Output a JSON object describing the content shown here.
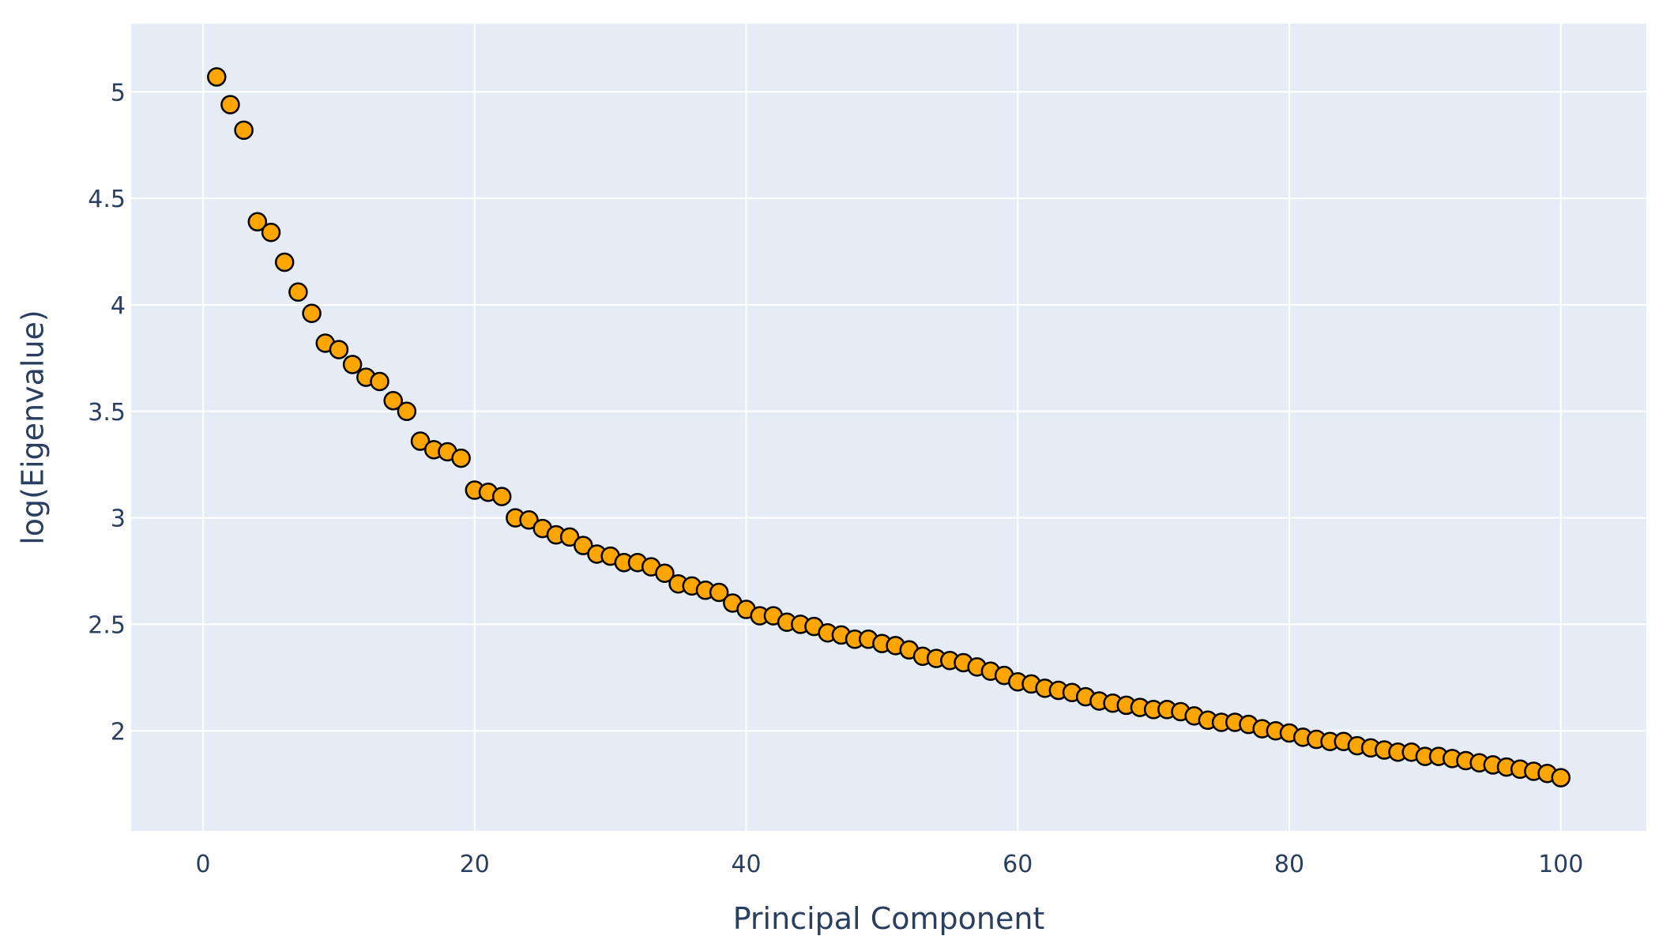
{
  "chart_data": {
    "type": "scatter",
    "title": "",
    "xlabel": "Principal Component",
    "ylabel": "log(Eigenvalue)",
    "xlim": [
      -5.3,
      106.3
    ],
    "ylim": [
      1.53,
      5.32
    ],
    "x_ticks": [
      0,
      20,
      40,
      60,
      80,
      100
    ],
    "y_ticks": [
      2,
      2.5,
      3,
      3.5,
      4,
      4.5,
      5
    ],
    "x_tick_labels": [
      "0",
      "20",
      "40",
      "60",
      "80",
      "100"
    ],
    "y_tick_labels": [
      "2",
      "2.5",
      "3",
      "3.5",
      "4",
      "4.5",
      "5"
    ],
    "grid": true,
    "background_color": "#e5ecf6",
    "marker_color": "#ffa500",
    "marker_edge_color": "#000000",
    "series": [
      {
        "x": [
          1,
          2,
          3,
          4,
          5,
          6,
          7,
          8,
          9,
          10,
          11,
          12,
          13,
          14,
          15,
          16,
          17,
          18,
          19,
          20,
          21,
          22,
          23,
          24,
          25,
          26,
          27,
          28,
          29,
          30,
          31,
          32,
          33,
          34,
          35,
          36,
          37,
          38,
          39,
          40,
          41,
          42,
          43,
          44,
          45,
          46,
          47,
          48,
          49,
          50,
          51,
          52,
          53,
          54,
          55,
          56,
          57,
          58,
          59,
          60,
          61,
          62,
          63,
          64,
          65,
          66,
          67,
          68,
          69,
          70,
          71,
          72,
          73,
          74,
          75,
          76,
          77,
          78,
          79,
          80,
          81,
          82,
          83,
          84,
          85,
          86,
          87,
          88,
          89,
          90,
          91,
          92,
          93,
          94,
          95,
          96,
          97,
          98,
          99,
          100
        ],
        "y": [
          5.07,
          4.94,
          4.82,
          4.39,
          4.34,
          4.2,
          4.06,
          3.96,
          3.82,
          3.79,
          3.72,
          3.66,
          3.64,
          3.55,
          3.5,
          3.36,
          3.32,
          3.31,
          3.28,
          3.13,
          3.12,
          3.1,
          3.0,
          2.99,
          2.95,
          2.92,
          2.91,
          2.87,
          2.83,
          2.82,
          2.79,
          2.79,
          2.77,
          2.74,
          2.69,
          2.68,
          2.66,
          2.65,
          2.6,
          2.57,
          2.54,
          2.54,
          2.51,
          2.5,
          2.49,
          2.46,
          2.45,
          2.43,
          2.43,
          2.41,
          2.4,
          2.38,
          2.35,
          2.34,
          2.33,
          2.32,
          2.3,
          2.28,
          2.26,
          2.23,
          2.22,
          2.2,
          2.19,
          2.18,
          2.16,
          2.14,
          2.13,
          2.12,
          2.11,
          2.1,
          2.1,
          2.09,
          2.07,
          2.05,
          2.04,
          2.04,
          2.03,
          2.01,
          2.0,
          1.99,
          1.97,
          1.96,
          1.95,
          1.95,
          1.93,
          1.92,
          1.91,
          1.9,
          1.9,
          1.88,
          1.88,
          1.87,
          1.86,
          1.85,
          1.84,
          1.83,
          1.82,
          1.81,
          1.8,
          1.78
        ]
      }
    ]
  }
}
